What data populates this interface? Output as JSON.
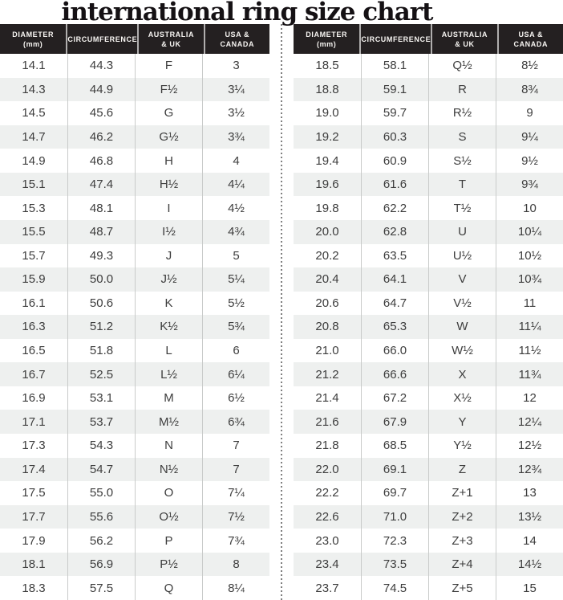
{
  "title": "international ring size chart",
  "header": {
    "cells": [
      {
        "line1": "DIAMETER",
        "line2": "(mm)"
      },
      {
        "line1": "CIRCUMFERENCE",
        "line2": ""
      },
      {
        "line1": "AUSTRALIA",
        "line2": "& UK"
      },
      {
        "line1": "USA &",
        "line2": "CANADA"
      }
    ]
  },
  "chart_data": {
    "type": "table",
    "title": "international ring size chart",
    "layout": "two side-by-side tables separated by a vertical dotted divider; alternating row stripes; dark header band",
    "columns": [
      "DIAMETER (mm)",
      "CIRCUMFERENCE",
      "AUSTRALIA & UK",
      "USA & CANADA"
    ],
    "tables": [
      {
        "rows": [
          [
            "14.1",
            "44.3",
            "F",
            "3"
          ],
          [
            "14.3",
            "44.9",
            "F½",
            "3¼"
          ],
          [
            "14.5",
            "45.6",
            "G",
            "3½"
          ],
          [
            "14.7",
            "46.2",
            "G½",
            "3¾"
          ],
          [
            "14.9",
            "46.8",
            "H",
            "4"
          ],
          [
            "15.1",
            "47.4",
            "H½",
            "4¼"
          ],
          [
            "15.3",
            "48.1",
            "I",
            "4½"
          ],
          [
            "15.5",
            "48.7",
            "I½",
            "4¾"
          ],
          [
            "15.7",
            "49.3",
            "J",
            "5"
          ],
          [
            "15.9",
            "50.0",
            "J½",
            "5¼"
          ],
          [
            "16.1",
            "50.6",
            "K",
            "5½"
          ],
          [
            "16.3",
            "51.2",
            "K½",
            "5¾"
          ],
          [
            "16.5",
            "51.8",
            "L",
            "6"
          ],
          [
            "16.7",
            "52.5",
            "L½",
            "6¼"
          ],
          [
            "16.9",
            "53.1",
            "M",
            "6½"
          ],
          [
            "17.1",
            "53.7",
            "M½",
            "6¾"
          ],
          [
            "17.3",
            "54.3",
            "N",
            "7"
          ],
          [
            "17.4",
            "54.7",
            "N½",
            "7"
          ],
          [
            "17.5",
            "55.0",
            "O",
            "7¼"
          ],
          [
            "17.7",
            "55.6",
            "O½",
            "7½"
          ],
          [
            "17.9",
            "56.2",
            "P",
            "7¾"
          ],
          [
            "18.1",
            "56.9",
            "P½",
            "8"
          ],
          [
            "18.3",
            "57.5",
            "Q",
            "8¼"
          ]
        ]
      },
      {
        "rows": [
          [
            "18.5",
            "58.1",
            "Q½",
            "8½"
          ],
          [
            "18.8",
            "59.1",
            "R",
            "8¾"
          ],
          [
            "19.0",
            "59.7",
            "R½",
            "9"
          ],
          [
            "19.2",
            "60.3",
            "S",
            "9¼"
          ],
          [
            "19.4",
            "60.9",
            "S½",
            "9½"
          ],
          [
            "19.6",
            "61.6",
            "T",
            "9¾"
          ],
          [
            "19.8",
            "62.2",
            "T½",
            "10"
          ],
          [
            "20.0",
            "62.8",
            "U",
            "10¼"
          ],
          [
            "20.2",
            "63.5",
            "U½",
            "10½"
          ],
          [
            "20.4",
            "64.1",
            "V",
            "10¾"
          ],
          [
            "20.6",
            "64.7",
            "V½",
            "11"
          ],
          [
            "20.8",
            "65.3",
            "W",
            "11¼"
          ],
          [
            "21.0",
            "66.0",
            "W½",
            "11½"
          ],
          [
            "21.2",
            "66.6",
            "X",
            "11¾"
          ],
          [
            "21.4",
            "67.2",
            "X½",
            "12"
          ],
          [
            "21.6",
            "67.9",
            "Y",
            "12¼"
          ],
          [
            "21.8",
            "68.5",
            "Y½",
            "12½"
          ],
          [
            "22.0",
            "69.1",
            "Z",
            "12¾"
          ],
          [
            "22.2",
            "69.7",
            "Z+1",
            "13"
          ],
          [
            "22.6",
            "71.0",
            "Z+2",
            "13½"
          ],
          [
            "23.0",
            "72.3",
            "Z+3",
            "14"
          ],
          [
            "23.4",
            "73.5",
            "Z+4",
            "14½"
          ],
          [
            "23.7",
            "74.5",
            "Z+5",
            "15"
          ]
        ]
      }
    ]
  },
  "colors": {
    "title_color": "#151114",
    "header_bg": "#242021",
    "header_text": "#f7f5f2",
    "header_border": "#b0aeae",
    "row_stripe": "#eef0ef",
    "body_text": "#3d3d3d",
    "column_border": "#c9cbca",
    "divider_dot": "#7f7f7f"
  }
}
